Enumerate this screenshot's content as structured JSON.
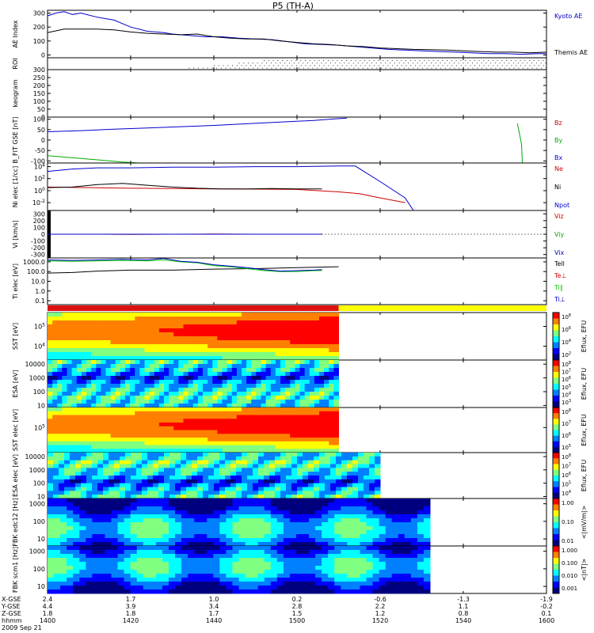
{
  "title": "P5 (TH-A)",
  "time_axis": {
    "rows": [
      {
        "label": "X-GSE",
        "values": [
          "2.4",
          "1.7",
          "1.0",
          "0.2",
          "-0.6",
          "-1.3",
          "-1.9"
        ]
      },
      {
        "label": "Y-GSE",
        "values": [
          "4.4",
          "3.9",
          "3.4",
          "2.8",
          "2.2",
          "1.1",
          "-0.2"
        ]
      },
      {
        "label": "Z-GSE",
        "values": [
          "1.8",
          "1.8",
          "1.7",
          "1.5",
          "1.2",
          "0.8",
          "0.1"
        ]
      },
      {
        "label": "hhmm",
        "values": [
          "1400",
          "1420",
          "1440",
          "1500",
          "1520",
          "1540",
          "1600"
        ]
      }
    ],
    "date": "2009 Sep 21",
    "range_minutes": [
      0,
      120
    ]
  },
  "chart_data": [
    {
      "type": "line",
      "ylabel": "AE Index",
      "yticks": [
        "300",
        "200",
        "100",
        "0"
      ],
      "ylim": [
        -20,
        320
      ],
      "series": [
        {
          "name": "Kyoto AE",
          "color": "#0000cc",
          "x": [
            0,
            2,
            4,
            6,
            8,
            12,
            16,
            20,
            24,
            28,
            30,
            34,
            38,
            42,
            46,
            50,
            54,
            58,
            62,
            66,
            70,
            74,
            78,
            82,
            86,
            90,
            94,
            98,
            102,
            106,
            110,
            114,
            118,
            120
          ],
          "y": [
            280,
            300,
            310,
            290,
            300,
            270,
            250,
            200,
            170,
            160,
            150,
            140,
            130,
            130,
            120,
            115,
            110,
            95,
            80,
            75,
            70,
            60,
            50,
            40,
            35,
            30,
            25,
            20,
            15,
            10,
            10,
            5,
            10,
            10
          ]
        },
        {
          "name": "Themis AE",
          "color": "#000000",
          "x": [
            0,
            4,
            8,
            12,
            16,
            20,
            24,
            28,
            32,
            36,
            40,
            44,
            48,
            52,
            56,
            60,
            64,
            68,
            72,
            76,
            80,
            84,
            88,
            92,
            96,
            100,
            104,
            108,
            112,
            116,
            120
          ],
          "y": [
            160,
            185,
            185,
            185,
            180,
            165,
            155,
            150,
            145,
            150,
            130,
            120,
            115,
            115,
            100,
            90,
            80,
            75,
            65,
            60,
            50,
            45,
            40,
            38,
            35,
            30,
            25,
            20,
            20,
            15,
            20
          ]
        }
      ]
    },
    {
      "type": "scatter",
      "ylabel": "ROI",
      "yticks": [],
      "x_start_minutes": 34
    },
    {
      "type": "line",
      "ylabel": "keogram",
      "yticks": [
        "300",
        "250",
        "200",
        "150",
        "100",
        "50",
        "0"
      ],
      "ylim": [
        0,
        300
      ],
      "series": []
    },
    {
      "type": "line",
      "ylabel": "B_FIT GSE [nT]",
      "yticks": [
        "100",
        "50",
        "0",
        "-50",
        "-100"
      ],
      "ylim": [
        -110,
        110
      ],
      "series": [
        {
          "name": "Bz",
          "color": "#cc0000",
          "x": [],
          "y": []
        },
        {
          "name": "By",
          "color": "#00aa00",
          "x": [
            0,
            6,
            12,
            18,
            22
          ],
          "y": [
            -75,
            -85,
            -95,
            -105,
            -110
          ]
        },
        {
          "name": "By",
          "color": "#00aa00",
          "x": [
            113,
            113.4,
            114,
            114.2
          ],
          "y": [
            80,
            40,
            -20,
            -110
          ]
        },
        {
          "name": "Bx",
          "color": "#0000cc",
          "x": [
            0,
            8,
            16,
            24,
            32,
            40,
            48,
            56,
            64,
            68,
            72
          ],
          "y": [
            40,
            45,
            52,
            58,
            64,
            70,
            78,
            86,
            94,
            100,
            105
          ]
        }
      ]
    },
    {
      "type": "line",
      "ylabel": "Ni elec [1/cc]",
      "log": true,
      "ytick_exponents": [
        4,
        2,
        0,
        -2
      ],
      "ylim_exponent": [
        -3.3,
        4.6
      ],
      "series": [
        {
          "name": "Ne",
          "color": "#cc0000",
          "x": [
            0,
            10,
            20,
            30,
            40,
            50,
            60,
            70,
            75,
            80,
            86
          ],
          "y": [
            0.6,
            0.5,
            0.4,
            0.35,
            0.3,
            0.25,
            0.2,
            -0.2,
            -0.5,
            -1.2,
            -2.0
          ]
        },
        {
          "name": "Ni",
          "color": "#000000",
          "x": [
            0,
            6,
            12,
            18,
            24,
            30,
            36,
            42,
            48,
            54,
            60,
            66
          ],
          "y": [
            0.5,
            0.6,
            1.0,
            1.2,
            0.9,
            0.6,
            0.4,
            0.3,
            0.3,
            0.35,
            0.3,
            0.3
          ]
        },
        {
          "name": "Npot",
          "color": "#0000cc",
          "x": [
            0,
            6,
            12,
            20,
            30,
            40,
            50,
            60,
            70,
            74,
            80,
            86,
            88
          ],
          "y": [
            3.2,
            3.6,
            3.8,
            3.8,
            3.9,
            3.9,
            4.0,
            4.0,
            4.1,
            4.1,
            1.5,
            -1.2,
            -3.3
          ]
        }
      ]
    },
    {
      "type": "line",
      "ylabel": "Vi [km/s]",
      "yticks": [
        "300",
        "200",
        "100",
        "0",
        "-100",
        "-200",
        "-300"
      ],
      "ylim": [
        -350,
        350
      ],
      "series": [
        {
          "name": "Viz",
          "color": "#cc0000",
          "x": [
            0,
            10,
            20,
            30,
            40,
            50,
            60,
            66
          ],
          "y": [
            0,
            0,
            -2,
            0,
            2,
            0,
            0,
            0
          ]
        },
        {
          "name": "Viy",
          "color": "#00aa00",
          "x": [
            0,
            66
          ],
          "y": [
            0,
            0
          ]
        },
        {
          "name": "Vix",
          "color": "#0000cc",
          "x": [
            0,
            66
          ],
          "y": [
            0,
            0
          ]
        }
      ]
    },
    {
      "type": "line",
      "ylabel": "Ti elec [eV]",
      "log": true,
      "ytick_labels": [
        "1000.0",
        "100.0",
        "10.0",
        "1.0",
        "0.1"
      ],
      "ytick_exponents": [
        3,
        2,
        1,
        0,
        -1
      ],
      "ylim_exponent": [
        -1.4,
        3.4
      ],
      "series": [
        {
          "name": "Tell",
          "color": "#000000",
          "x": [
            0,
            6,
            12,
            20,
            30,
            40,
            50,
            60,
            70
          ],
          "y": [
            1.85,
            1.9,
            2.05,
            2.15,
            2.15,
            2.25,
            2.3,
            2.4,
            2.5
          ]
        },
        {
          "name": "Te⊥",
          "color": "#cc0000",
          "x": [],
          "y": []
        },
        {
          "name": "Ti∥",
          "color": "#00cc00",
          "x": [
            0,
            6,
            12,
            18,
            24,
            28,
            32,
            36,
            40,
            44,
            48,
            52,
            56,
            60,
            64,
            66
          ],
          "y": [
            3.1,
            3.05,
            3.1,
            3.15,
            3.1,
            3.2,
            3.0,
            2.9,
            2.6,
            2.5,
            2.3,
            2.1,
            2.0,
            2.0,
            2.1,
            2.1
          ]
        },
        {
          "name": "Ti⊥",
          "color": "#0000cc",
          "x": [
            0,
            6,
            12,
            18,
            24,
            28,
            32,
            36,
            40,
            44,
            48,
            52,
            56,
            60,
            64,
            66
          ],
          "y": [
            3.2,
            3.15,
            3.2,
            3.25,
            3.2,
            3.35,
            3.05,
            2.95,
            2.7,
            2.55,
            2.4,
            2.2,
            2.05,
            2.1,
            2.15,
            2.2
          ]
        }
      ]
    },
    {
      "type": "heatmap",
      "ylabel": "SST [eV]",
      "log": true,
      "ytick_exponents": [
        5,
        4
      ],
      "ylim_exponent": [
        3.3,
        5.7
      ],
      "data_until_minutes": 70,
      "colorbar_label": "Eflux, EFU",
      "colorbar_exponents": [
        8,
        6,
        4,
        2
      ]
    },
    {
      "type": "heatmap",
      "ylabel": "ESA [eV]",
      "yticks": [
        "10000",
        "1000",
        "100",
        "10"
      ],
      "log": true,
      "ytick_exponents": [
        4,
        3,
        2,
        1
      ],
      "ylim_exponent": [
        0.85,
        4.3
      ],
      "data_until_minutes": 70,
      "colorbar_label": "Eflux, EFU",
      "colorbar_exponents": [
        8,
        7,
        6,
        5,
        4,
        3
      ]
    },
    {
      "type": "heatmap",
      "ylabel": "SST elec [eV]",
      "log": true,
      "ytick_exponents": [
        5
      ],
      "ylim_exponent": [
        4.0,
        5.8
      ],
      "data_until_minutes": 70,
      "colorbar_label": "Eflux, EFU",
      "colorbar_exponents": [
        8,
        7,
        6,
        5
      ]
    },
    {
      "type": "heatmap",
      "ylabel": "ESA elec [eV]",
      "yticks": [
        "10000",
        "1000",
        "100",
        "10"
      ],
      "log": true,
      "ytick_exponents": [
        4,
        3,
        2,
        1
      ],
      "ylim_exponent": [
        0.85,
        4.3
      ],
      "data_until_minutes": 80,
      "colorbar_label": "Eflux, EFU",
      "colorbar_exponents": [
        8,
        7,
        6,
        5,
        4
      ]
    },
    {
      "type": "heatmap",
      "ylabel": "FBK edc12 [Hz]",
      "yticks": [
        "1000",
        "100",
        "10"
      ],
      "log": true,
      "ytick_exponents": [
        3,
        2,
        1
      ],
      "ylim_exponent": [
        0.6,
        3.3
      ],
      "data_until_minutes": 92,
      "colorbar_label": "<|mV/m|>",
      "colorbar_ticks": [
        "1.00",
        "0.10",
        "0.01"
      ]
    },
    {
      "type": "heatmap",
      "ylabel": "FBK scm1 [Hz]",
      "yticks": [
        "1000",
        "100",
        "10"
      ],
      "log": true,
      "ytick_exponents": [
        3,
        2,
        1
      ],
      "ylim_exponent": [
        0.6,
        3.3
      ],
      "data_until_minutes": 92,
      "colorbar_label": "<|nT|>",
      "colorbar_ticks": [
        "1.000",
        "0.100",
        "0.010",
        "0.001"
      ]
    }
  ],
  "mode_bar": {
    "segments": [
      {
        "color": "#dd1111",
        "from": 0,
        "to": 70
      },
      {
        "color": "#ffff00",
        "from": 70,
        "to": 120
      }
    ]
  },
  "colors": {
    "axis": "#000000",
    "text": "#000000",
    "background": "#ffffff"
  }
}
